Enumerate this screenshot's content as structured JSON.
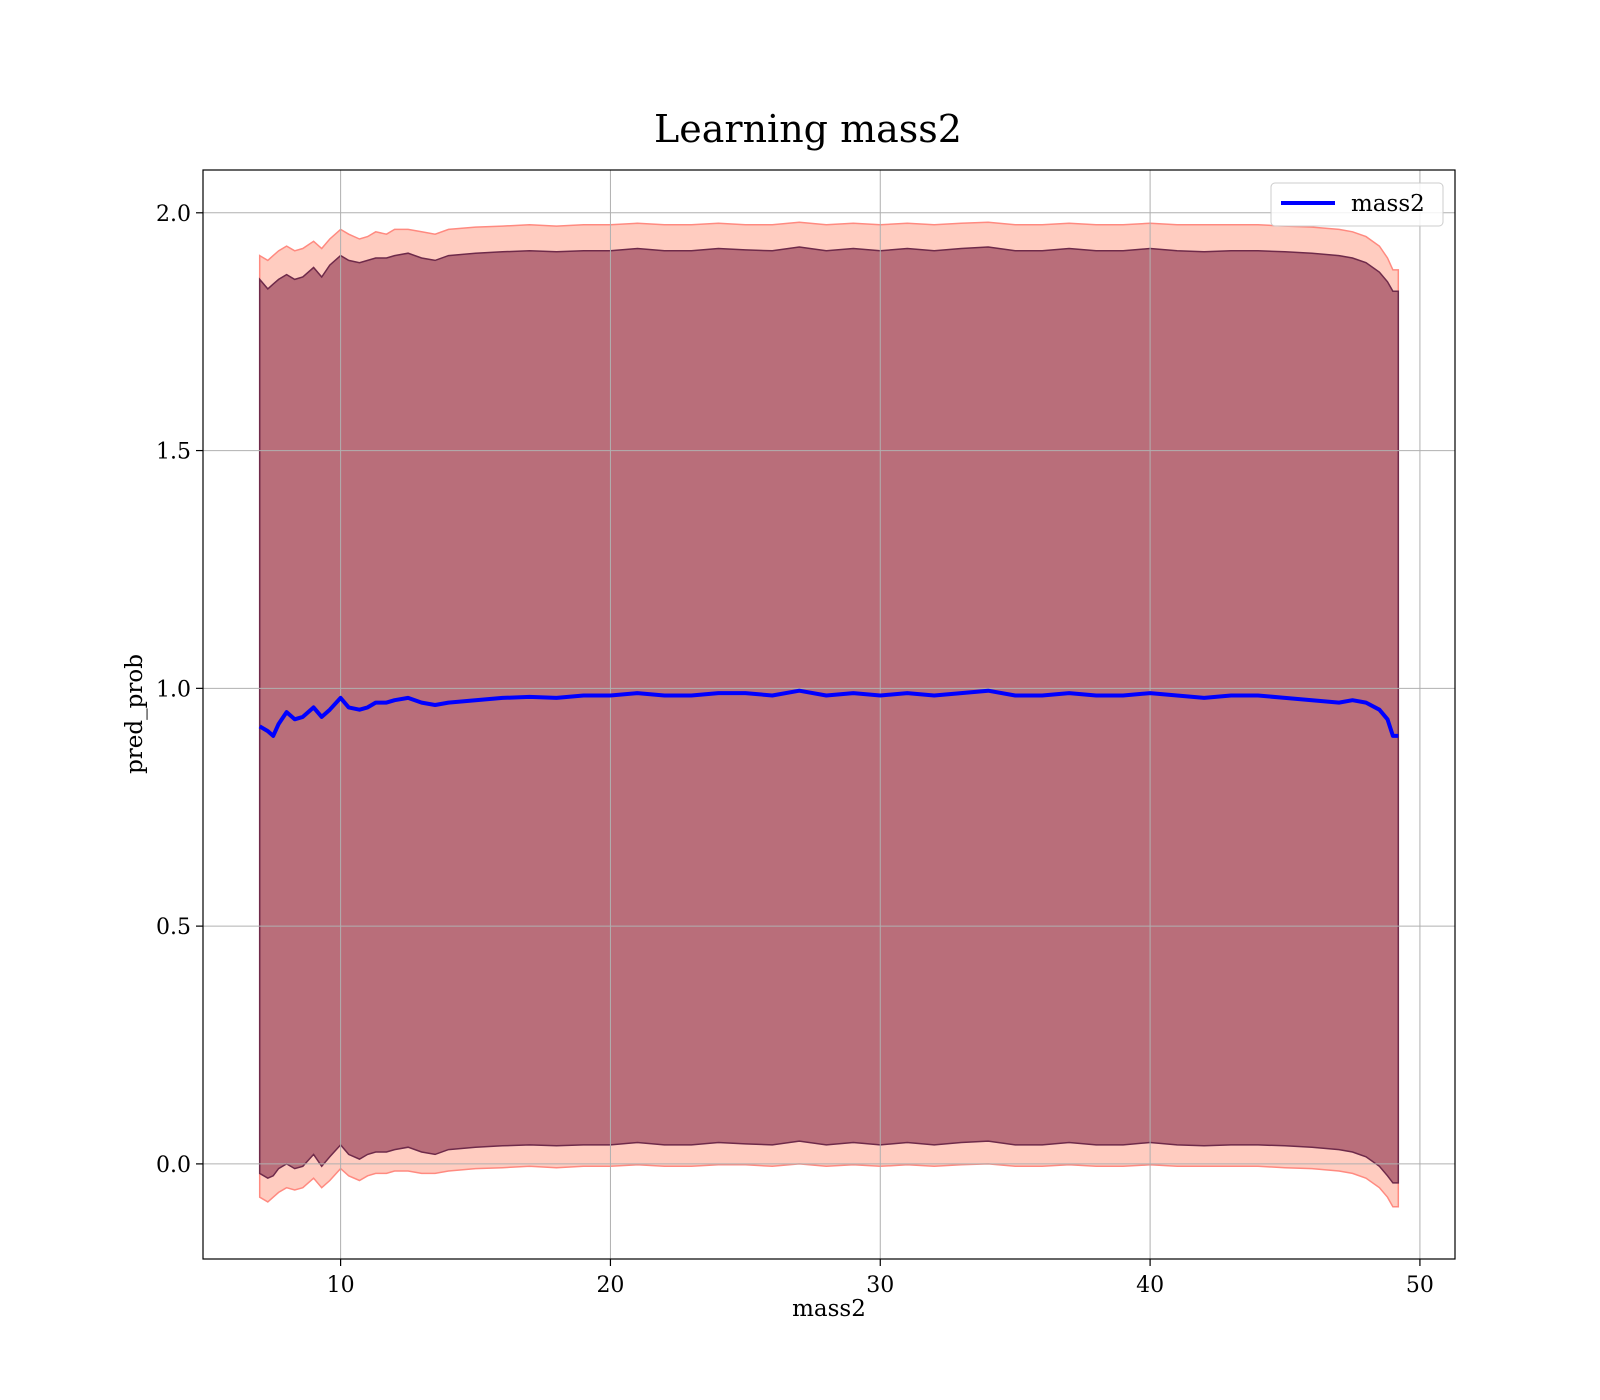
{
  "chart_data": {
    "type": "line",
    "title": "Learning mass2",
    "xlabel": "mass2",
    "ylabel": "pred_prob",
    "xlim": [
      4.9,
      51.3
    ],
    "ylim": [
      -0.2,
      2.09
    ],
    "xticks": [
      10,
      20,
      30,
      40,
      50
    ],
    "yticks": [
      0.0,
      0.5,
      1.0,
      1.5,
      2.0
    ],
    "xtick_labels": [
      "10",
      "20",
      "30",
      "40",
      "50"
    ],
    "ytick_labels": [
      "0.0",
      "0.5",
      "1.0",
      "1.5",
      "2.0"
    ],
    "grid": true,
    "legend_position": "upper right",
    "series": [
      {
        "name": "mass2",
        "color": "#0000ff",
        "x": [
          7.0,
          7.3,
          7.5,
          7.7,
          8.0,
          8.3,
          8.6,
          9.0,
          9.3,
          9.6,
          10.0,
          10.3,
          10.7,
          11.0,
          11.3,
          11.7,
          12.0,
          12.5,
          13.0,
          13.5,
          14.0,
          15.0,
          16.0,
          17.0,
          18.0,
          19.0,
          20.0,
          21.0,
          22.0,
          23.0,
          24.0,
          25.0,
          26.0,
          27.0,
          28.0,
          29.0,
          30.0,
          31.0,
          32.0,
          33.0,
          34.0,
          35.0,
          36.0,
          37.0,
          38.0,
          39.0,
          40.0,
          41.0,
          42.0,
          43.0,
          44.0,
          45.0,
          46.0,
          47.0,
          47.5,
          48.0,
          48.5,
          48.8,
          49.0,
          49.2
        ],
        "values": [
          0.92,
          0.91,
          0.9,
          0.925,
          0.95,
          0.935,
          0.94,
          0.96,
          0.94,
          0.955,
          0.98,
          0.96,
          0.955,
          0.96,
          0.97,
          0.97,
          0.975,
          0.98,
          0.97,
          0.965,
          0.97,
          0.975,
          0.98,
          0.982,
          0.98,
          0.985,
          0.985,
          0.99,
          0.985,
          0.985,
          0.99,
          0.99,
          0.985,
          0.995,
          0.985,
          0.99,
          0.985,
          0.99,
          0.985,
          0.99,
          0.995,
          0.985,
          0.985,
          0.99,
          0.985,
          0.985,
          0.99,
          0.985,
          0.98,
          0.985,
          0.985,
          0.98,
          0.975,
          0.97,
          0.975,
          0.97,
          0.955,
          0.935,
          0.9,
          0.9
        ]
      }
    ],
    "bands": [
      {
        "color": "#ff6e4a",
        "alpha": 0.35,
        "edge_color": "#ff8a80",
        "x": [
          7.0,
          7.3,
          7.5,
          7.7,
          8.0,
          8.3,
          8.6,
          9.0,
          9.3,
          9.6,
          10.0,
          10.3,
          10.7,
          11.0,
          11.3,
          11.7,
          12.0,
          12.5,
          13.0,
          13.5,
          14.0,
          15.0,
          16.0,
          17.0,
          18.0,
          19.0,
          20.0,
          21.0,
          22.0,
          23.0,
          24.0,
          25.0,
          26.0,
          27.0,
          28.0,
          29.0,
          30.0,
          31.0,
          32.0,
          33.0,
          34.0,
          35.0,
          36.0,
          37.0,
          38.0,
          39.0,
          40.0,
          41.0,
          42.0,
          43.0,
          44.0,
          45.0,
          46.0,
          47.0,
          47.5,
          48.0,
          48.5,
          48.8,
          49.0,
          49.2
        ],
        "upper": [
          1.91,
          1.9,
          1.91,
          1.92,
          1.93,
          1.92,
          1.925,
          1.94,
          1.925,
          1.945,
          1.965,
          1.955,
          1.945,
          1.95,
          1.96,
          1.955,
          1.965,
          1.965,
          1.96,
          1.955,
          1.965,
          1.97,
          1.972,
          1.975,
          1.972,
          1.975,
          1.975,
          1.978,
          1.975,
          1.975,
          1.978,
          1.975,
          1.975,
          1.98,
          1.975,
          1.978,
          1.975,
          1.978,
          1.975,
          1.978,
          1.98,
          1.975,
          1.975,
          1.978,
          1.975,
          1.975,
          1.978,
          1.975,
          1.975,
          1.975,
          1.975,
          1.972,
          1.97,
          1.965,
          1.96,
          1.95,
          1.93,
          1.905,
          1.88,
          1.88
        ],
        "lower": [
          -0.07,
          -0.08,
          -0.07,
          -0.06,
          -0.05,
          -0.055,
          -0.05,
          -0.03,
          -0.05,
          -0.035,
          -0.01,
          -0.025,
          -0.035,
          -0.025,
          -0.02,
          -0.02,
          -0.015,
          -0.015,
          -0.02,
          -0.02,
          -0.015,
          -0.01,
          -0.008,
          -0.005,
          -0.008,
          -0.005,
          -0.005,
          -0.002,
          -0.005,
          -0.005,
          -0.002,
          -0.002,
          -0.005,
          0.0,
          -0.005,
          -0.002,
          -0.005,
          -0.002,
          -0.005,
          -0.002,
          0.0,
          -0.005,
          -0.005,
          -0.002,
          -0.005,
          -0.005,
          -0.002,
          -0.005,
          -0.005,
          -0.005,
          -0.005,
          -0.008,
          -0.01,
          -0.015,
          -0.02,
          -0.03,
          -0.05,
          -0.07,
          -0.09,
          -0.09
        ]
      },
      {
        "color": "#7f2040",
        "alpha": 0.55,
        "edge_color": "#6e2a4a",
        "x": [
          7.0,
          7.3,
          7.5,
          7.7,
          8.0,
          8.3,
          8.6,
          9.0,
          9.3,
          9.6,
          10.0,
          10.3,
          10.7,
          11.0,
          11.3,
          11.7,
          12.0,
          12.5,
          13.0,
          13.5,
          14.0,
          15.0,
          16.0,
          17.0,
          18.0,
          19.0,
          20.0,
          21.0,
          22.0,
          23.0,
          24.0,
          25.0,
          26.0,
          27.0,
          28.0,
          29.0,
          30.0,
          31.0,
          32.0,
          33.0,
          34.0,
          35.0,
          36.0,
          37.0,
          38.0,
          39.0,
          40.0,
          41.0,
          42.0,
          43.0,
          44.0,
          45.0,
          46.0,
          47.0,
          47.5,
          48.0,
          48.5,
          48.8,
          49.0,
          49.2
        ],
        "upper": [
          1.86,
          1.84,
          1.85,
          1.86,
          1.87,
          1.86,
          1.865,
          1.885,
          1.865,
          1.89,
          1.91,
          1.9,
          1.895,
          1.9,
          1.905,
          1.905,
          1.91,
          1.915,
          1.905,
          1.9,
          1.91,
          1.915,
          1.918,
          1.92,
          1.918,
          1.92,
          1.92,
          1.925,
          1.92,
          1.92,
          1.925,
          1.922,
          1.92,
          1.928,
          1.92,
          1.925,
          1.92,
          1.925,
          1.92,
          1.925,
          1.928,
          1.92,
          1.92,
          1.925,
          1.92,
          1.92,
          1.925,
          1.92,
          1.918,
          1.92,
          1.92,
          1.918,
          1.915,
          1.91,
          1.905,
          1.895,
          1.875,
          1.855,
          1.835,
          1.835
        ],
        "lower": [
          -0.02,
          -0.03,
          -0.025,
          -0.01,
          0.0,
          -0.01,
          -0.005,
          0.02,
          -0.005,
          0.015,
          0.04,
          0.02,
          0.01,
          0.02,
          0.025,
          0.025,
          0.03,
          0.035,
          0.025,
          0.02,
          0.03,
          0.035,
          0.038,
          0.04,
          0.038,
          0.04,
          0.04,
          0.045,
          0.04,
          0.04,
          0.045,
          0.042,
          0.04,
          0.048,
          0.04,
          0.045,
          0.04,
          0.045,
          0.04,
          0.045,
          0.048,
          0.04,
          0.04,
          0.045,
          0.04,
          0.04,
          0.045,
          0.04,
          0.038,
          0.04,
          0.04,
          0.038,
          0.035,
          0.03,
          0.025,
          0.015,
          -0.005,
          -0.025,
          -0.04,
          -0.04
        ]
      }
    ]
  }
}
